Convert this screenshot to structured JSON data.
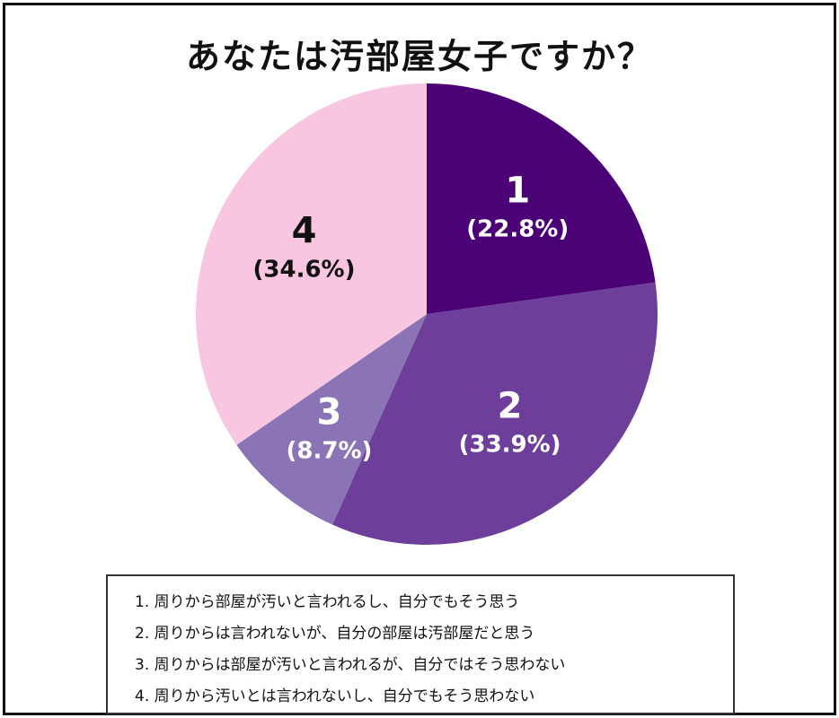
{
  "chart_data": {
    "type": "pie",
    "title": "あなたは汚部屋女子ですか？",
    "slices": [
      {
        "label": "1",
        "value": 22.8,
        "percent_label": "(22.8%)",
        "color": "#4b0076",
        "text_color": "#ffffff"
      },
      {
        "label": "2",
        "value": 33.9,
        "percent_label": "(33.9%)",
        "color": "#6d3f9a",
        "text_color": "#ffffff"
      },
      {
        "label": "3",
        "value": 8.7,
        "percent_label": "(8.7%)",
        "color": "#8a74b6",
        "text_color": "#ffffff"
      },
      {
        "label": "4",
        "value": 34.6,
        "percent_label": "(34.6%)",
        "color": "#f8c6e0",
        "text_color": "#111111"
      }
    ],
    "start_angle": "12 o'clock",
    "direction": "clockwise",
    "legend": {
      "placement": "bottom",
      "entries": [
        "1. 周りから部屋が汚いと言われるし、自分でもそう思う",
        "2. 周りからは言われないが、自分の部屋は汚部屋だと思う",
        "3. 周りからは部屋が汚いと言われるが、自分ではそう思わない",
        "4. 周りから汚いとは言われないし、自分でもそう思わない"
      ]
    }
  }
}
